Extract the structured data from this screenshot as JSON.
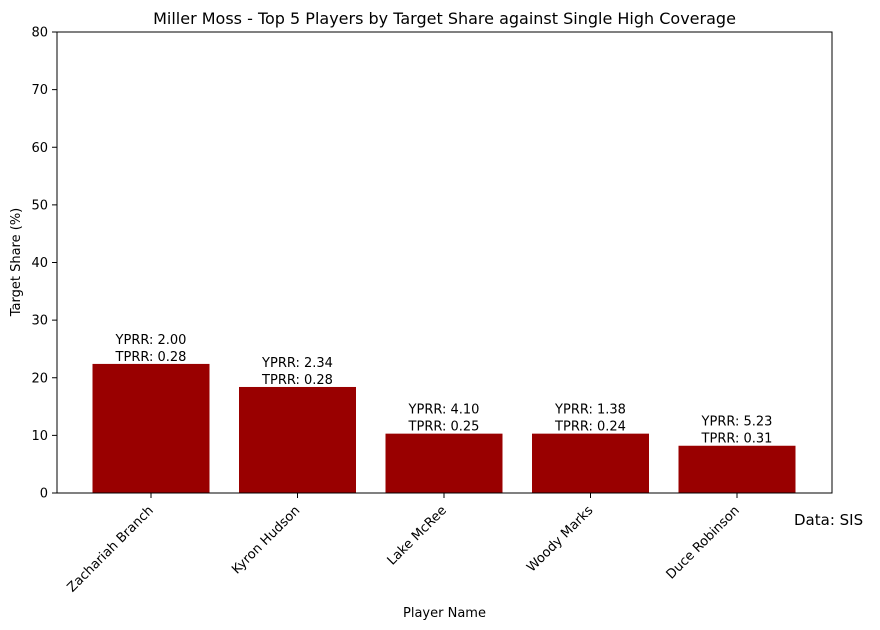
{
  "chart_data": {
    "type": "bar",
    "title": "Miller Moss - Top 5 Players by Target Share against Single High Coverage",
    "xlabel": "Player Name",
    "ylabel": "Target Share (%)",
    "ylim": [
      0,
      80
    ],
    "yticks": [
      0,
      10,
      20,
      30,
      40,
      50,
      60,
      70,
      80
    ],
    "categories": [
      "Zachariah Branch",
      "Kyron Hudson",
      "Lake McRee",
      "Woody Marks",
      "Duce Robinson"
    ],
    "values": [
      22.4,
      18.4,
      10.3,
      10.3,
      8.2
    ],
    "yprr_labels": [
      "YPRR: 2.00",
      "YPRR: 2.34",
      "YPRR: 4.10",
      "YPRR: 1.38",
      "YPRR: 5.23"
    ],
    "tprr_labels": [
      "TPRR: 0.28",
      "TPRR: 0.28",
      "TPRR: 0.25",
      "TPRR: 0.24",
      "TPRR: 0.31"
    ],
    "bar_color": "#990000",
    "credit": "Data: SIS"
  }
}
